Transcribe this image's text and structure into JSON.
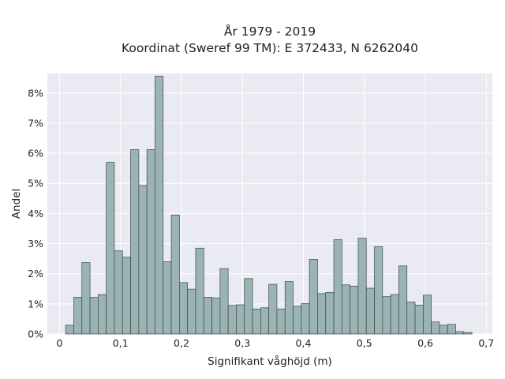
{
  "chart_data": {
    "type": "bar",
    "title": "År 1979 - 2019",
    "subtitle": "Koordinat (Sweref 99 TM): E 372433, N 6262040",
    "xlabel": "Signifikant våghöjd (m)",
    "ylabel": "Andel",
    "xlim": [
      -0.02,
      0.71
    ],
    "ylim": [
      0,
      0.0865
    ],
    "bin_start": 0.01,
    "bin_width": 0.01333,
    "values": [
      0.0029,
      0.0122,
      0.0237,
      0.0122,
      0.0131,
      0.057,
      0.0276,
      0.0255,
      0.0612,
      0.0493,
      0.0612,
      0.0856,
      0.024,
      0.0395,
      0.0171,
      0.0149,
      0.0285,
      0.0122,
      0.012,
      0.0217,
      0.0095,
      0.0097,
      0.0184,
      0.0083,
      0.0087,
      0.0165,
      0.0083,
      0.0174,
      0.0092,
      0.0101,
      0.0248,
      0.0134,
      0.0138,
      0.0313,
      0.0163,
      0.0159,
      0.0318,
      0.0152,
      0.029,
      0.0124,
      0.0131,
      0.0226,
      0.0106,
      0.0096,
      0.0129,
      0.004,
      0.0029,
      0.0032,
      0.0008,
      0.0005
    ],
    "x_ticks": [
      {
        "value": 0.0,
        "label": "0"
      },
      {
        "value": 0.1,
        "label": "0,1"
      },
      {
        "value": 0.2,
        "label": "0,2"
      },
      {
        "value": 0.3,
        "label": "0,3"
      },
      {
        "value": 0.4,
        "label": "0,4"
      },
      {
        "value": 0.5,
        "label": "0,5"
      },
      {
        "value": 0.6,
        "label": "0,6"
      },
      {
        "value": 0.7,
        "label": "0,7"
      }
    ],
    "y_ticks": [
      {
        "value": 0.0,
        "label": "0%"
      },
      {
        "value": 0.01,
        "label": "1%"
      },
      {
        "value": 0.02,
        "label": "2%"
      },
      {
        "value": 0.03,
        "label": "3%"
      },
      {
        "value": 0.04,
        "label": "4%"
      },
      {
        "value": 0.05,
        "label": "5%"
      },
      {
        "value": 0.06,
        "label": "6%"
      },
      {
        "value": 0.07,
        "label": "7%"
      },
      {
        "value": 0.08,
        "label": "8%"
      }
    ],
    "grid": true,
    "colors": {
      "bar_fill": "#9bb3b3",
      "bar_edge": "#3a4a4a",
      "plot_background": "#eaeaf2",
      "grid": "#ffffff"
    }
  }
}
